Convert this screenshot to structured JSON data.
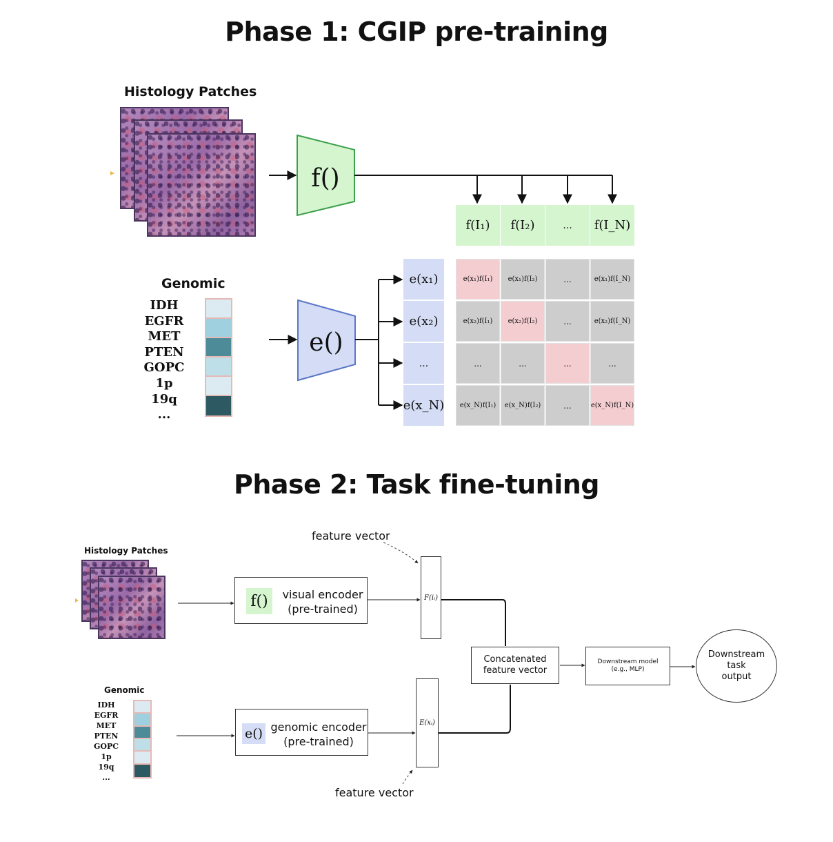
{
  "phase1": {
    "title": "Phase 1: CGIP pre-training",
    "histology_label": "Histology Patches",
    "genomic_label": "Genomic",
    "genes": [
      "IDH",
      "EGFR",
      "MET",
      "PTEN",
      "GOPC",
      "1p",
      "19q",
      "..."
    ],
    "gene_colors": [
      "#dcebf2",
      "#9fd0df",
      "#4d8b99",
      "#bfdfe8",
      "#dcebf2",
      "#2d5963"
    ],
    "visual_encoder": "f()",
    "genomic_encoder": "e()",
    "f_row": [
      "f(I₁)",
      "f(I₂)",
      "...",
      "f(I_N)"
    ],
    "e_col": [
      "e(x₁)",
      "e(x₂)",
      "...",
      "e(x_N)"
    ],
    "matrix": [
      [
        "e(x₁)f(I₁)",
        "e(x₁)f(I₂)",
        "...",
        "e(x₁)f(I_N)"
      ],
      [
        "e(x₂)f(I₁)",
        "e(x₂)f(I₂)",
        "...",
        "e(x₂)f(I_N)"
      ],
      [
        "...",
        "...",
        "...",
        "..."
      ],
      [
        "e(x_N)f(I₁)",
        "e(x_N)f(I₂)",
        "...",
        "e(x_N)f(I_N)"
      ]
    ],
    "colors": {
      "green": "#d5f5cf",
      "blue": "#d4ddf5",
      "gray": "#cdcdcd",
      "pink": "#f4cdd0",
      "encoder_green_stroke": "#3aa04a",
      "encoder_blue_stroke": "#5b76c8"
    }
  },
  "phase2": {
    "title": "Phase 2: Task fine-tuning",
    "histology_label": "Histology Patches",
    "genomic_label": "Genomic",
    "genes": [
      "IDH",
      "EGFR",
      "MET",
      "PTEN",
      "GOPC",
      "1p",
      "19q",
      "..."
    ],
    "visual_encoder_tag": "f()",
    "visual_encoder_text": [
      "visual encoder",
      "(pre-trained)"
    ],
    "genomic_encoder_tag": "e()",
    "genomic_encoder_text": [
      "genomic encoder",
      "(pre-trained)"
    ],
    "feature_vector_top": "feature vector",
    "feature_vector_bottom": "feature vector",
    "f_vec_label": "F(iᵢ)",
    "e_vec_label": "E(xᵢ)",
    "concat_text": [
      "Concatenated",
      "feature vector"
    ],
    "downstream_model_text": [
      "Downstream model",
      "(e.g., MLP)"
    ],
    "output_text": [
      "Downstream",
      "task",
      "output"
    ]
  }
}
